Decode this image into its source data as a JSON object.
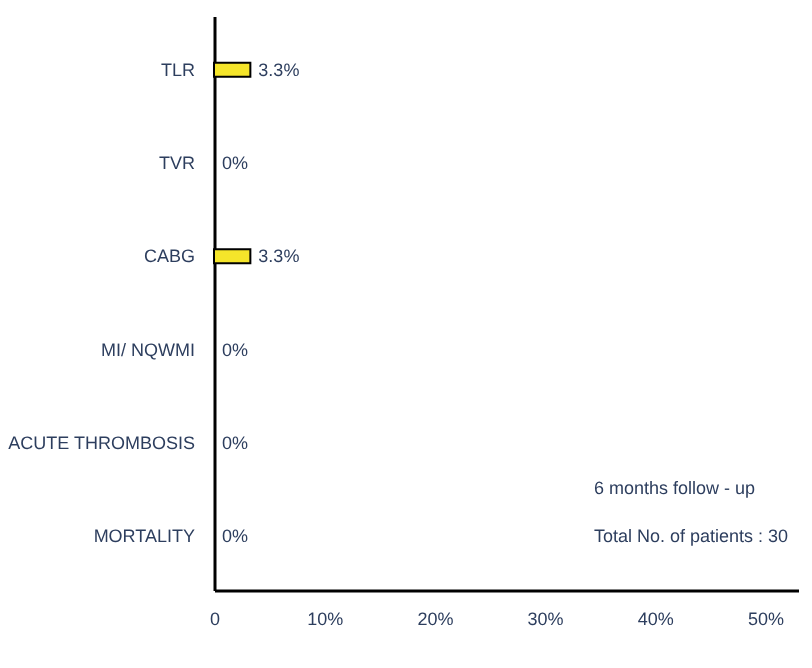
{
  "chart_data": {
    "type": "bar",
    "orientation": "horizontal",
    "categories": [
      "TLR",
      "TVR",
      "CABG",
      "MI/ NQWMI",
      "ACUTE THROMBOSIS",
      "MORTALITY"
    ],
    "series": [
      {
        "color": "#f5e52a",
        "values": [
          3.3,
          0,
          3.3,
          0,
          0,
          0
        ]
      }
    ],
    "value_labels": [
      "3.3%",
      "0%",
      "3.3%",
      "0%",
      "0%",
      "0%"
    ],
    "xlim": [
      0,
      53
    ],
    "xticks": [
      0,
      {
        "value": 10,
        "label": "10%"
      },
      {
        "value": 20,
        "label": "20%"
      },
      {
        "value": 30,
        "label": "30%"
      },
      {
        "value": 40,
        "label": "40%"
      },
      {
        "value": 50,
        "label": "50%"
      }
    ],
    "annotations": [
      "6 months follow - up",
      "Total No. of patients : 30"
    ],
    "grid": false
  }
}
